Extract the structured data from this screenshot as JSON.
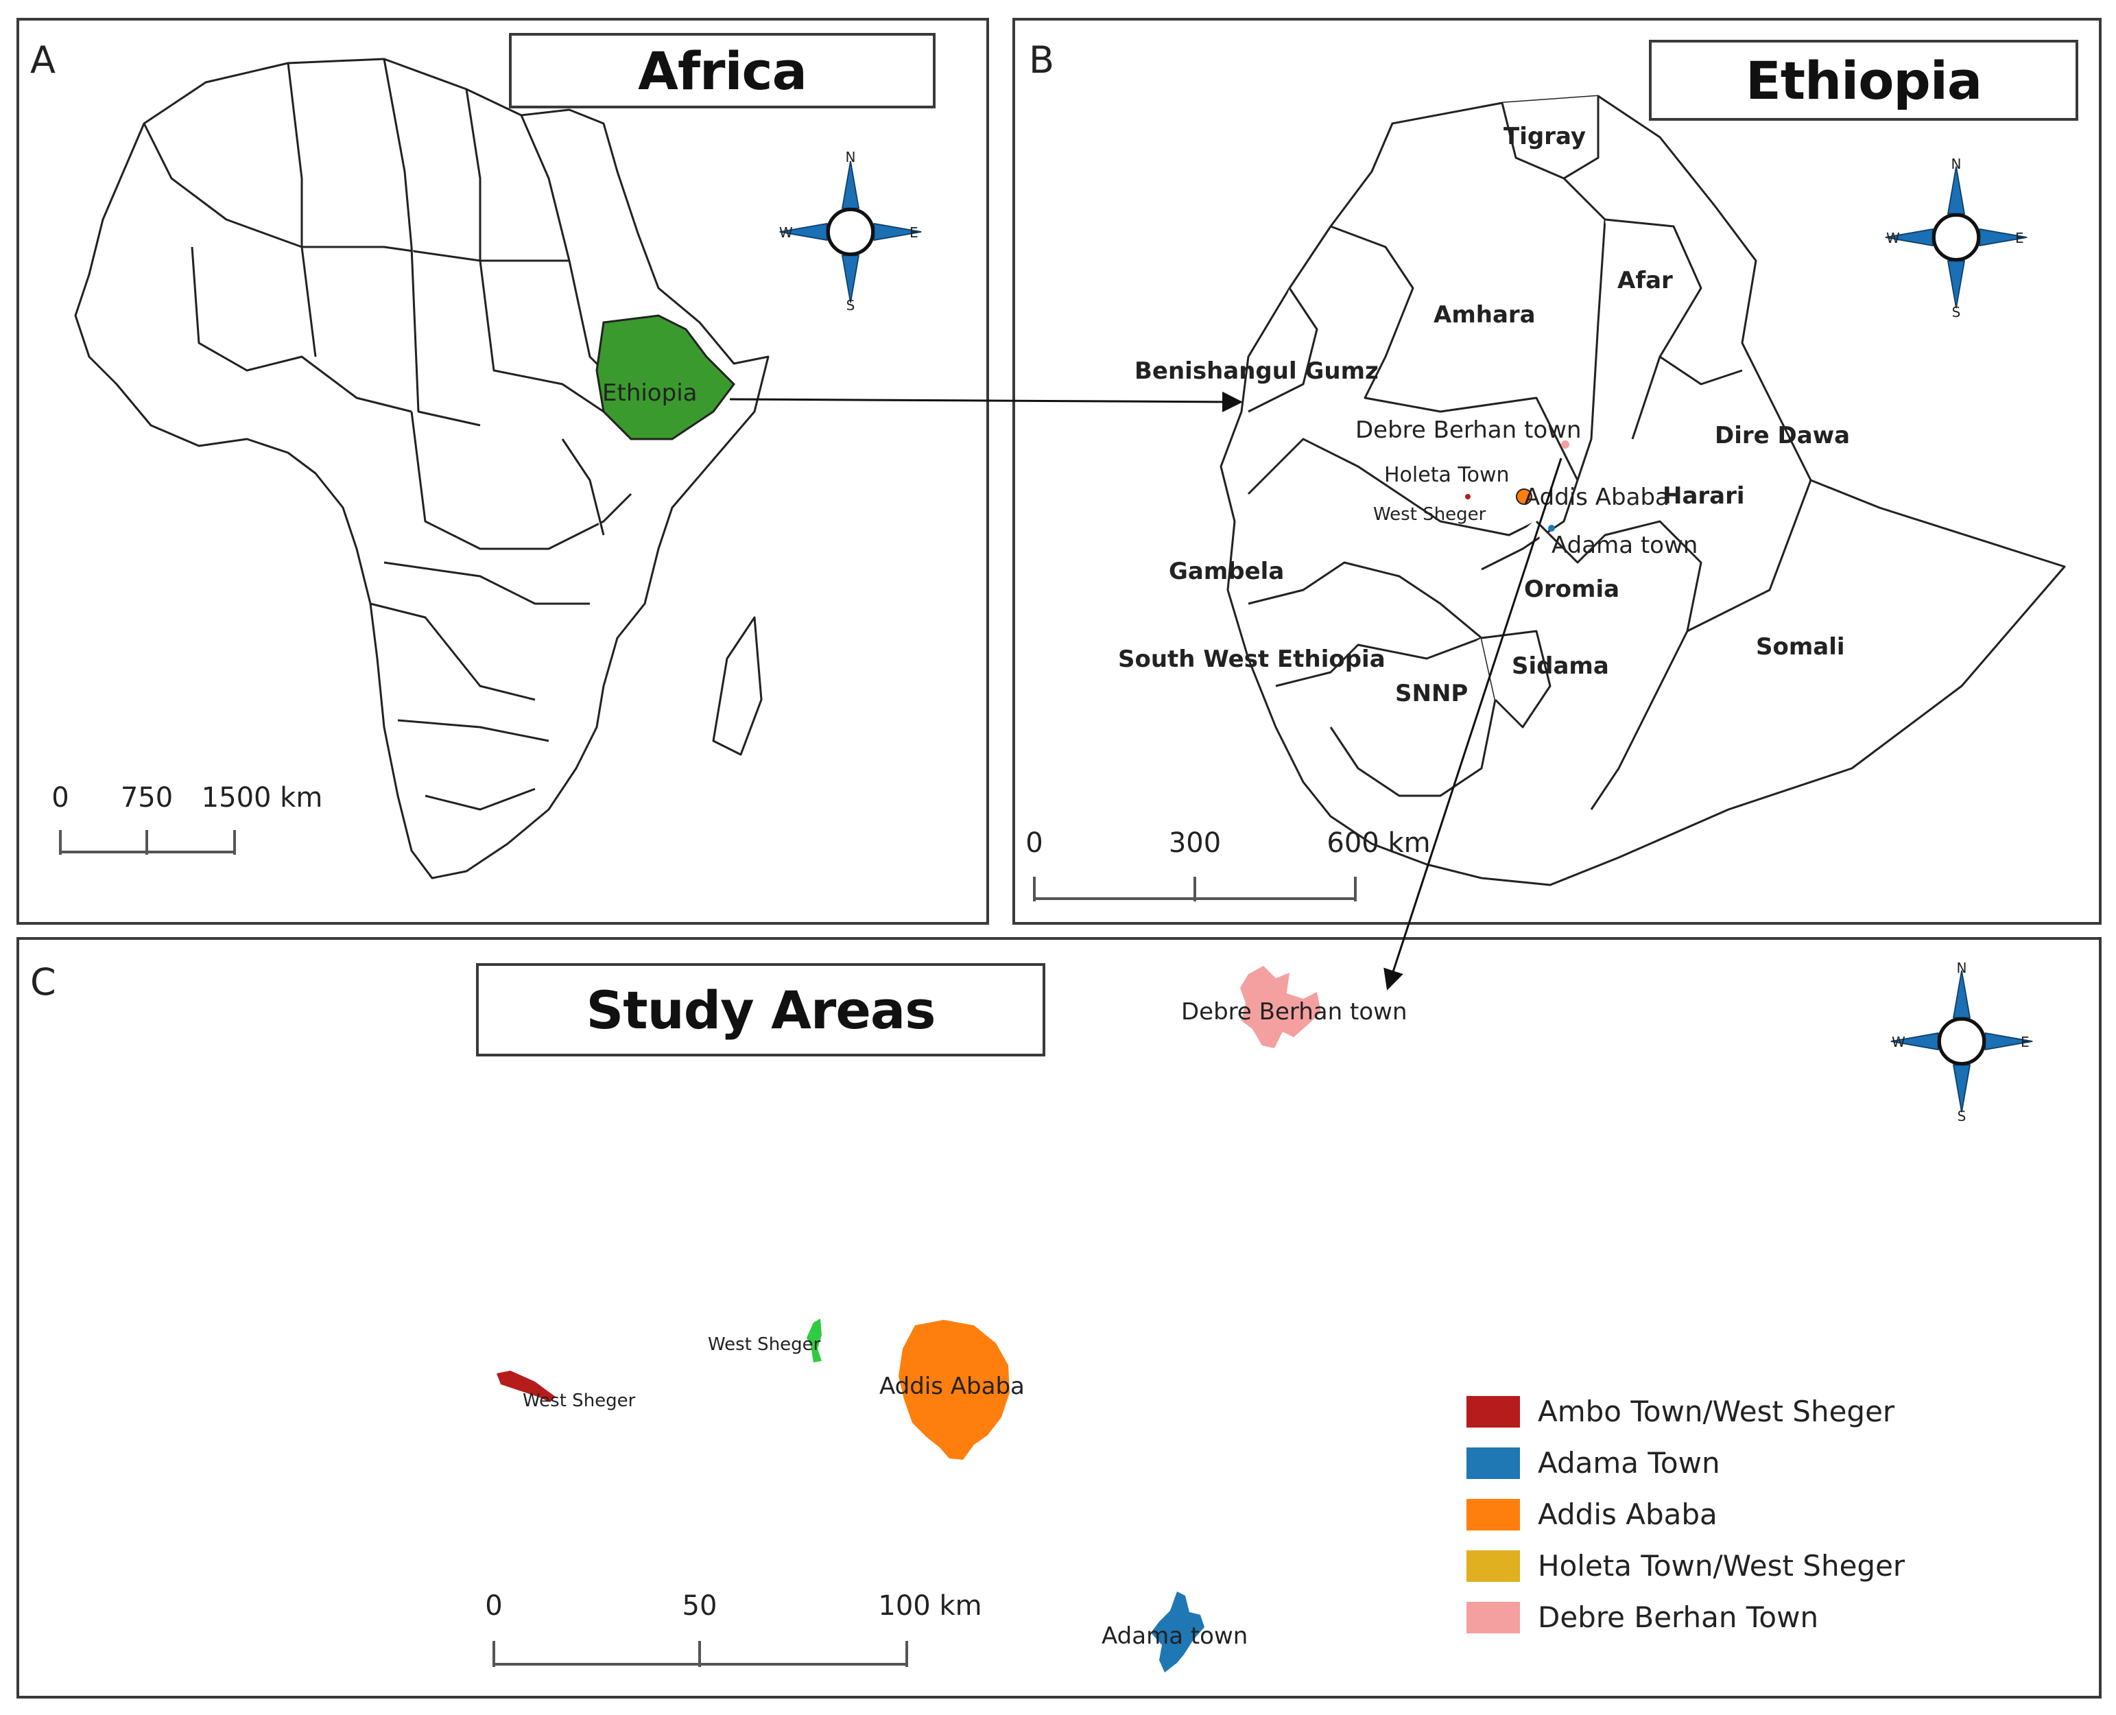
{
  "panels": {
    "a": {
      "letter": "A",
      "title": "Africa",
      "highlight_label": "Ethiopia",
      "scale": {
        "ticks": [
          "0",
          "750",
          "1500 km"
        ]
      }
    },
    "b": {
      "letter": "B",
      "title": "Ethiopia",
      "regions": [
        "Tigray",
        "Afar",
        "Amhara",
        "Benishangul Gumz",
        "Dire Dawa",
        "Harari",
        "Gambela",
        "Oromia",
        "Somali",
        "South West Ethiopia",
        "SNNP",
        "Sidama"
      ],
      "towns": [
        "Debre Berhan town",
        "Holeta Town",
        "Addis Ababa",
        "West Sheger",
        "Adama town"
      ],
      "scale": {
        "ticks": [
          "0",
          "300",
          "600 km"
        ]
      }
    },
    "c": {
      "letter": "C",
      "title": "Study Areas",
      "place_labels": {
        "debre_berhan": "Debre Berhan town",
        "west_sheger_1": "West Sheger",
        "west_sheger_2": "West Sheger",
        "addis_ababa": "Addis Ababa",
        "adama": "Adama town"
      },
      "scale": {
        "ticks": [
          "0",
          "50",
          "100 km"
        ]
      }
    }
  },
  "compass": {
    "n": "N",
    "s": "S",
    "e": "E",
    "w": "W"
  },
  "legend": [
    {
      "label": "Ambo Town/West Sheger",
      "color": "#b71c1c"
    },
    {
      "label": "Adama Town",
      "color": "#1f77b4"
    },
    {
      "label": "Addis Ababa",
      "color": "#ff7f0e"
    },
    {
      "label": "Holeta Town/West Sheger",
      "color": "#e0b020"
    },
    {
      "label": "Debre Berhan Town",
      "color": "#f4a0a0"
    }
  ],
  "colors": {
    "ethiopia_highlight": "#3a9a2e",
    "west_sheger_green": "#2ecc40",
    "outline": "#222222",
    "compass_blue": "#1a6fb5"
  }
}
